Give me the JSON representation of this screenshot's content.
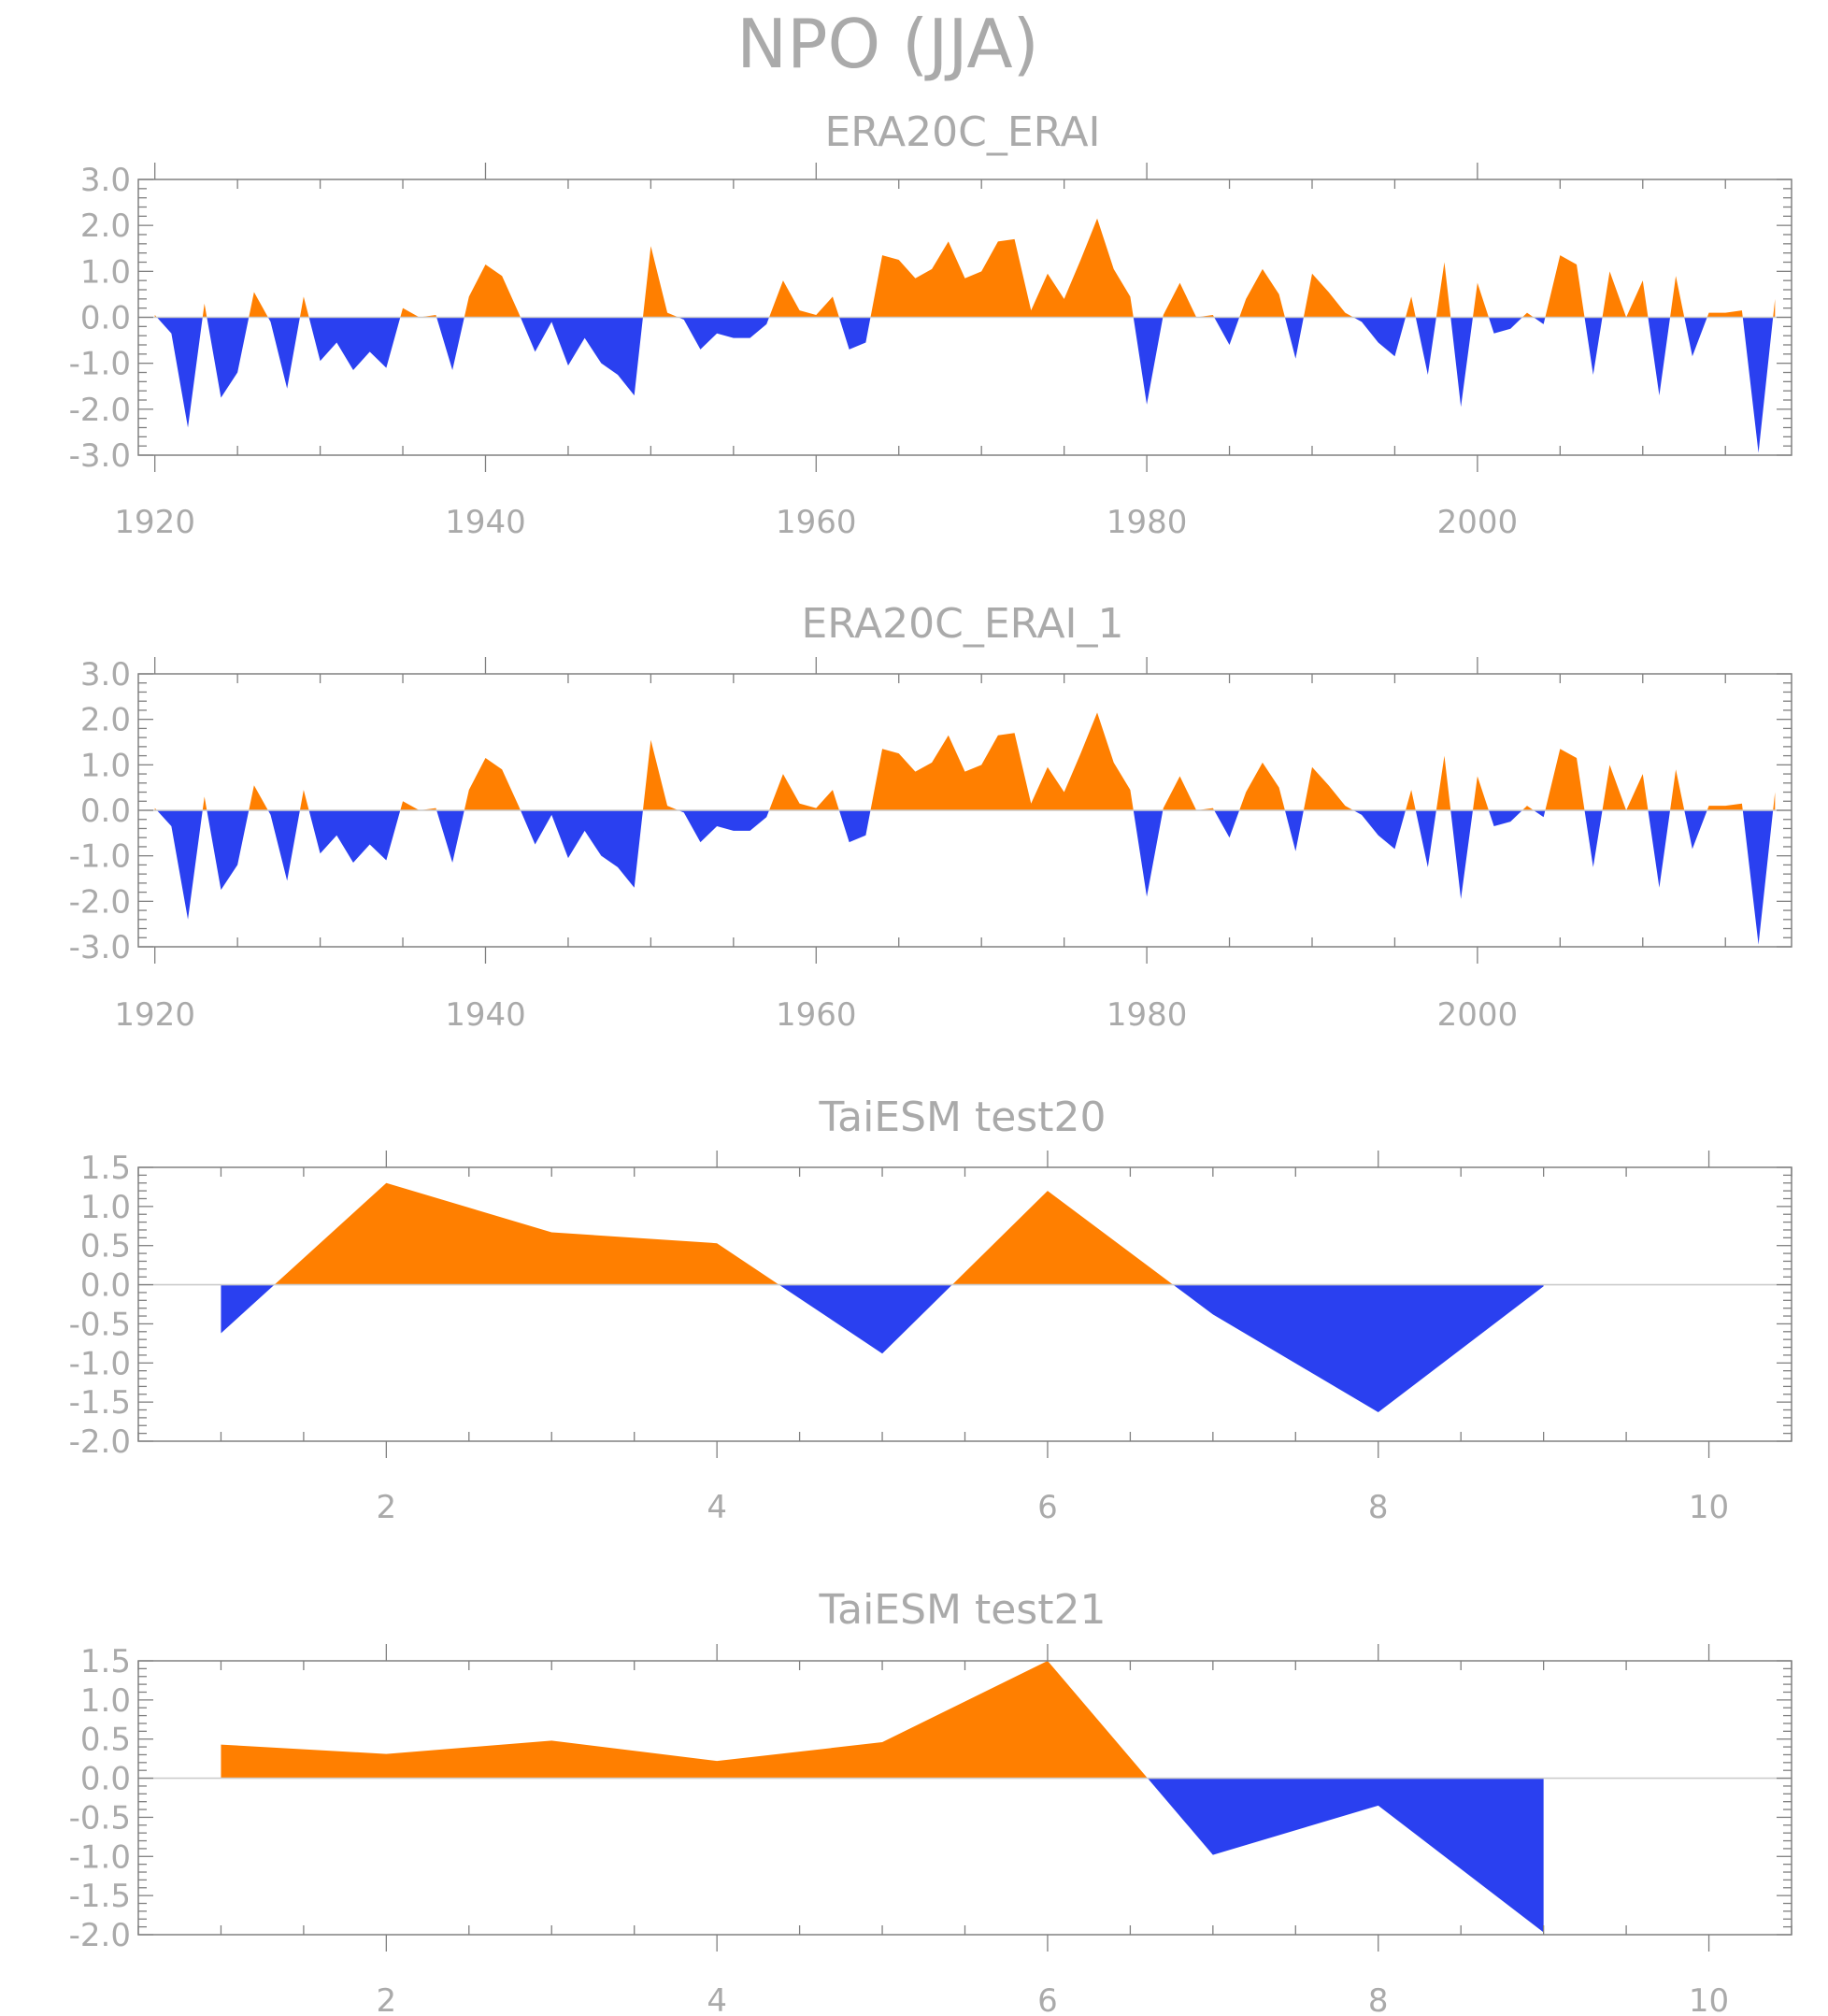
{
  "figure_title": "NPO (JJA)",
  "colors": {
    "positive": "#ff7f00",
    "negative": "#2a40f0",
    "axis": "#808080",
    "text": "#aaaaaa"
  },
  "chart_data": [
    {
      "type": "area",
      "title": "ERA20C_ERAI",
      "xlim": [
        1919,
        2019
      ],
      "ylim": [
        -3.0,
        3.0
      ],
      "x_ticks": [
        1920,
        1940,
        1960,
        1980,
        2000
      ],
      "y_ticks": [
        "-3.0",
        "-2.0",
        "-1.0",
        "0.0",
        "1.0",
        "2.0",
        "3.0"
      ],
      "x": [
        1920,
        1921,
        1922,
        1923,
        1924,
        1925,
        1926,
        1927,
        1928,
        1929,
        1930,
        1931,
        1932,
        1933,
        1934,
        1935,
        1936,
        1937,
        1938,
        1939,
        1940,
        1941,
        1942,
        1943,
        1944,
        1945,
        1946,
        1947,
        1948,
        1949,
        1950,
        1951,
        1952,
        1953,
        1954,
        1955,
        1956,
        1957,
        1958,
        1959,
        1960,
        1961,
        1962,
        1963,
        1964,
        1965,
        1966,
        1967,
        1968,
        1969,
        1970,
        1971,
        1972,
        1973,
        1974,
        1975,
        1976,
        1977,
        1978,
        1979,
        1980,
        1981,
        1982,
        1983,
        1984,
        1985,
        1986,
        1987,
        1988,
        1989,
        1990,
        1991,
        1992,
        1993,
        1994,
        1995,
        1996,
        1997,
        1998,
        1999,
        2000,
        2001,
        2002,
        2003,
        2004,
        2005,
        2006,
        2007,
        2008,
        2009,
        2010,
        2011,
        2012,
        2013,
        2014,
        2015,
        2016,
        2017,
        2018
      ],
      "values": [
        0.05,
        -0.35,
        -2.4,
        0.3,
        -1.75,
        -1.2,
        0.55,
        -0.1,
        -1.55,
        0.45,
        -0.95,
        -0.55,
        -1.15,
        -0.75,
        -1.1,
        0.2,
        0.0,
        0.05,
        -1.15,
        0.45,
        1.15,
        0.9,
        0.1,
        -0.75,
        -0.1,
        -1.05,
        -0.45,
        -1.0,
        -1.25,
        -1.7,
        1.55,
        0.1,
        -0.05,
        -0.7,
        -0.35,
        -0.45,
        -0.45,
        -0.15,
        0.8,
        0.15,
        0.05,
        0.45,
        -0.7,
        -0.55,
        1.35,
        1.25,
        0.85,
        1.05,
        1.65,
        0.85,
        1.0,
        1.65,
        1.7,
        0.15,
        0.95,
        0.4,
        1.25,
        2.15,
        1.05,
        0.45,
        -1.9,
        0.05,
        0.75,
        0.0,
        0.05,
        -0.6,
        0.4,
        1.05,
        0.5,
        -0.9,
        0.95,
        0.55,
        0.1,
        -0.1,
        -0.55,
        -0.85,
        0.45,
        -1.25,
        1.2,
        -1.95,
        0.75,
        -0.35,
        -0.25,
        0.1,
        -0.15,
        1.35,
        1.15,
        -1.25,
        1.0,
        0.0,
        0.8,
        -1.7,
        0.9,
        -0.85,
        0.1,
        0.1,
        0.15,
        -2.95,
        0.4
      ]
    },
    {
      "type": "area",
      "title": "ERA20C_ERAI_1",
      "xlim": [
        1919,
        2019
      ],
      "ylim": [
        -3.0,
        3.0
      ],
      "x_ticks": [
        1920,
        1940,
        1960,
        1980,
        2000
      ],
      "y_ticks": [
        "-3.0",
        "-2.0",
        "-1.0",
        "0.0",
        "1.0",
        "2.0",
        "3.0"
      ],
      "x": [
        1920,
        1921,
        1922,
        1923,
        1924,
        1925,
        1926,
        1927,
        1928,
        1929,
        1930,
        1931,
        1932,
        1933,
        1934,
        1935,
        1936,
        1937,
        1938,
        1939,
        1940,
        1941,
        1942,
        1943,
        1944,
        1945,
        1946,
        1947,
        1948,
        1949,
        1950,
        1951,
        1952,
        1953,
        1954,
        1955,
        1956,
        1957,
        1958,
        1959,
        1960,
        1961,
        1962,
        1963,
        1964,
        1965,
        1966,
        1967,
        1968,
        1969,
        1970,
        1971,
        1972,
        1973,
        1974,
        1975,
        1976,
        1977,
        1978,
        1979,
        1980,
        1981,
        1982,
        1983,
        1984,
        1985,
        1986,
        1987,
        1988,
        1989,
        1990,
        1991,
        1992,
        1993,
        1994,
        1995,
        1996,
        1997,
        1998,
        1999,
        2000,
        2001,
        2002,
        2003,
        2004,
        2005,
        2006,
        2007,
        2008,
        2009,
        2010,
        2011,
        2012,
        2013,
        2014,
        2015,
        2016,
        2017,
        2018
      ],
      "values": [
        0.05,
        -0.35,
        -2.4,
        0.3,
        -1.75,
        -1.2,
        0.55,
        -0.1,
        -1.55,
        0.45,
        -0.95,
        -0.55,
        -1.15,
        -0.75,
        -1.1,
        0.2,
        0.0,
        0.05,
        -1.15,
        0.45,
        1.15,
        0.9,
        0.1,
        -0.75,
        -0.1,
        -1.05,
        -0.45,
        -1.0,
        -1.25,
        -1.7,
        1.55,
        0.1,
        -0.05,
        -0.7,
        -0.35,
        -0.45,
        -0.45,
        -0.15,
        0.8,
        0.15,
        0.05,
        0.45,
        -0.7,
        -0.55,
        1.35,
        1.25,
        0.85,
        1.05,
        1.65,
        0.85,
        1.0,
        1.65,
        1.7,
        0.15,
        0.95,
        0.4,
        1.25,
        2.15,
        1.05,
        0.45,
        -1.9,
        0.05,
        0.75,
        0.0,
        0.05,
        -0.6,
        0.4,
        1.05,
        0.5,
        -0.9,
        0.95,
        0.55,
        0.1,
        -0.1,
        -0.55,
        -0.85,
        0.45,
        -1.25,
        1.2,
        -1.95,
        0.75,
        -0.35,
        -0.25,
        0.1,
        -0.15,
        1.35,
        1.15,
        -1.25,
        1.0,
        0.0,
        0.8,
        -1.7,
        0.9,
        -0.85,
        0.1,
        0.1,
        0.15,
        -2.95,
        0.4
      ]
    },
    {
      "type": "area",
      "title": "TaiESM test20",
      "xlim": [
        0.5,
        10.5
      ],
      "ylim": [
        -2.0,
        1.5
      ],
      "x_ticks": [
        2,
        4,
        6,
        8,
        10
      ],
      "y_ticks": [
        "-2.0",
        "-1.5",
        "-1.0",
        "-0.5",
        "0.0",
        "0.5",
        "1.0",
        "1.5"
      ],
      "x": [
        1,
        2,
        3,
        4,
        5,
        6,
        7,
        8,
        9
      ],
      "values": [
        -0.62,
        1.3,
        0.67,
        0.53,
        -0.88,
        1.2,
        -0.38,
        -1.63,
        -0.02
      ]
    },
    {
      "type": "area",
      "title": "TaiESM test21",
      "xlim": [
        0.5,
        10.5
      ],
      "ylim": [
        -2.0,
        1.5
      ],
      "x_ticks": [
        2,
        4,
        6,
        8,
        10
      ],
      "y_ticks": [
        "-2.0",
        "-1.5",
        "-1.0",
        "-0.5",
        "0.0",
        "0.5",
        "1.0",
        "1.5"
      ],
      "x": [
        1,
        2,
        3,
        4,
        5,
        6,
        7,
        8,
        9
      ],
      "values": [
        0.43,
        0.31,
        0.48,
        0.22,
        0.46,
        1.5,
        -0.98,
        -0.35,
        -1.97
      ]
    }
  ]
}
